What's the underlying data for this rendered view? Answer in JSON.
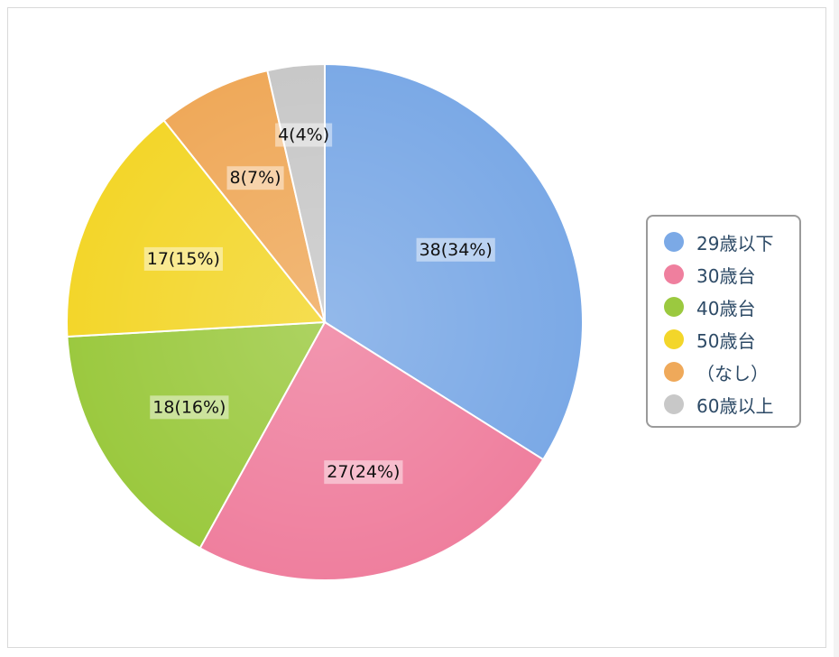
{
  "chart_data": {
    "type": "pie",
    "title": "",
    "start_angle_deg": 0,
    "direction": "clockwise",
    "legend_position": "right",
    "slices": [
      {
        "label": "29歳以下",
        "value": 38,
        "percent": 34,
        "data_label": "38(34%)",
        "color": "#7ba9e6"
      },
      {
        "label": "30歳台",
        "value": 27,
        "percent": 24,
        "data_label": "27(24%)",
        "color": "#ef7f9e"
      },
      {
        "label": "40歳台",
        "value": 18,
        "percent": 16,
        "data_label": "18(16%)",
        "color": "#9bc93f"
      },
      {
        "label": "50歳台",
        "value": 17,
        "percent": 15,
        "data_label": "17(15%)",
        "color": "#f3d62a"
      },
      {
        "label": "（なし）",
        "value": 8,
        "percent": 7,
        "data_label": "8(7%)",
        "color": "#efa95a"
      },
      {
        "label": "60歳以上",
        "value": 4,
        "percent": 4,
        "data_label": "4(4%)",
        "color": "#c8c8c8"
      }
    ]
  }
}
